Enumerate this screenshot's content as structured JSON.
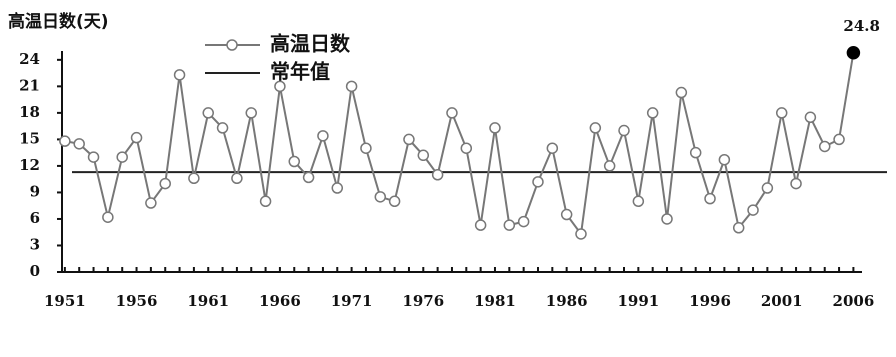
{
  "chart_data": {
    "type": "line",
    "title": "高温日数(天)",
    "x": [
      1951,
      1952,
      1953,
      1954,
      1955,
      1956,
      1957,
      1958,
      1959,
      1960,
      1961,
      1962,
      1963,
      1964,
      1965,
      1966,
      1967,
      1968,
      1969,
      1970,
      1971,
      1972,
      1973,
      1974,
      1975,
      1976,
      1977,
      1978,
      1979,
      1980,
      1981,
      1982,
      1983,
      1984,
      1985,
      1986,
      1987,
      1988,
      1989,
      1990,
      1991,
      1992,
      1993,
      1994,
      1995,
      1996,
      1997,
      1998,
      1999,
      2000,
      2001,
      2002,
      2003,
      2004,
      2005,
      2006
    ],
    "series": [
      {
        "name": "高温日数",
        "color": "#777777",
        "values": [
          14.8,
          14.5,
          13,
          6.2,
          13,
          15.2,
          7.8,
          10,
          22.3,
          10.6,
          18,
          16.3,
          10.6,
          18,
          8,
          21,
          12.5,
          10.7,
          15.4,
          9.5,
          21,
          14,
          8.5,
          8,
          15,
          13.2,
          11,
          18,
          14,
          5.3,
          16.3,
          5.3,
          5.7,
          10.2,
          14,
          6.5,
          4.3,
          16.3,
          12,
          16,
          8,
          18,
          6,
          20.3,
          13.5,
          8.3,
          12.7,
          5,
          7,
          9.5,
          18,
          10,
          17.5,
          14.2,
          15,
          24.8
        ]
      }
    ],
    "reference_line": {
      "name": "常年值",
      "value": 11.3,
      "color": "#222222"
    },
    "highlight_last": true,
    "xlim": [
      1950.8,
      2006.6
    ],
    "xticks": [
      1951,
      1956,
      1961,
      1966,
      1971,
      1976,
      1981,
      1986,
      1991,
      1996,
      2001,
      2006
    ],
    "ylim": [
      0,
      25
    ],
    "yticks": [
      0,
      3,
      6,
      9,
      12,
      15,
      18,
      21,
      24
    ]
  }
}
